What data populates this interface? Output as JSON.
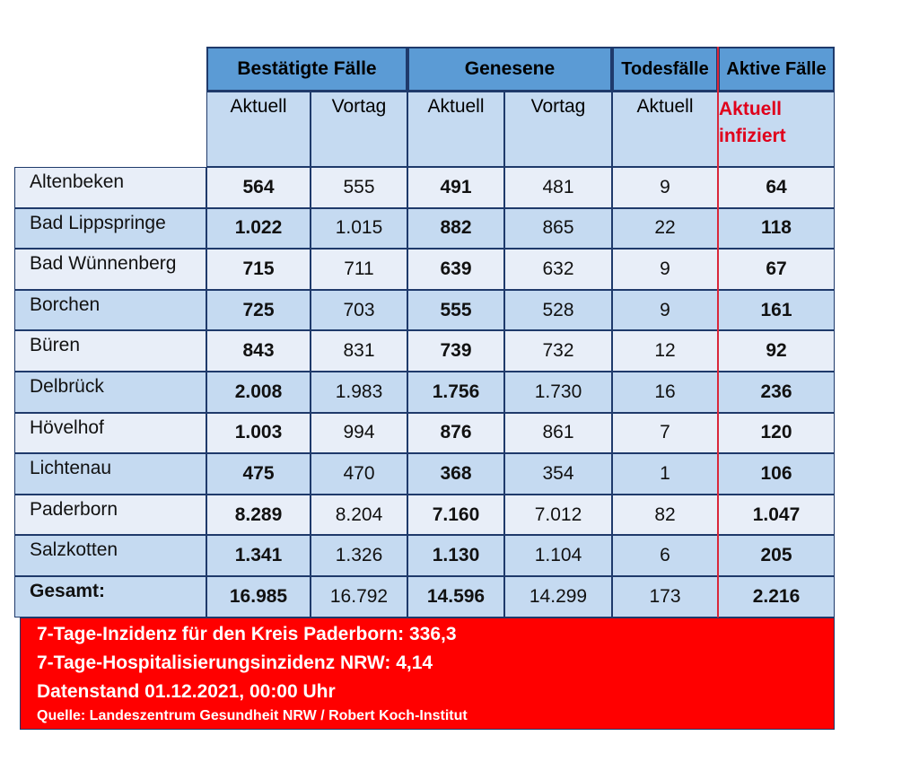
{
  "headers": {
    "group1": "Bestätigte Fälle",
    "group2": "Genesene",
    "group3": "Todesfälle",
    "group4": "Aktive Fälle",
    "sub1": "Aktuell",
    "sub2": "Vortag",
    "sub3": "Aktuell",
    "sub4": "Vortag",
    "sub5": "Aktuell",
    "sub6_line1": "Aktuell",
    "sub6_line2": "infiziert"
  },
  "rows": [
    {
      "name": "Altenbeken",
      "c1": "564",
      "c2": "555",
      "c3": "491",
      "c4": "481",
      "c5": "9",
      "c6": "64"
    },
    {
      "name": "Bad Lippspringe",
      "c1": "1.022",
      "c2": "1.015",
      "c3": "882",
      "c4": "865",
      "c5": "22",
      "c6": "118"
    },
    {
      "name": "Bad Wünnenberg",
      "c1": "715",
      "c2": "711",
      "c3": "639",
      "c4": "632",
      "c5": "9",
      "c6": "67"
    },
    {
      "name": "Borchen",
      "c1": "725",
      "c2": "703",
      "c3": "555",
      "c4": "528",
      "c5": "9",
      "c6": "161"
    },
    {
      "name": "Büren",
      "c1": "843",
      "c2": "831",
      "c3": "739",
      "c4": "732",
      "c5": "12",
      "c6": "92"
    },
    {
      "name": "Delbrück",
      "c1": "2.008",
      "c2": "1.983",
      "c3": "1.756",
      "c4": "1.730",
      "c5": "16",
      "c6": "236"
    },
    {
      "name": "Hövelhof",
      "c1": "1.003",
      "c2": "994",
      "c3": "876",
      "c4": "861",
      "c5": "7",
      "c6": "120"
    },
    {
      "name": "Lichtenau",
      "c1": "475",
      "c2": "470",
      "c3": "368",
      "c4": "354",
      "c5": "1",
      "c6": "106"
    },
    {
      "name": "Paderborn",
      "c1": "8.289",
      "c2": "8.204",
      "c3": "7.160",
      "c4": "7.012",
      "c5": "82",
      "c6": "1.047"
    },
    {
      "name": "Salzkotten",
      "c1": "1.341",
      "c2": "1.326",
      "c3": "1.130",
      "c4": "1.104",
      "c5": "6",
      "c6": "205"
    },
    {
      "name": "Gesamt:",
      "c1": "16.985",
      "c2": "16.792",
      "c3": "14.596",
      "c4": "14.299",
      "c5": "173",
      "c6": "2.216"
    }
  ],
  "note": {
    "line1": "7-Tage-Inzidenz für den Kreis Paderborn: 336,3",
    "line2": "7-Tage-Hospitalisierungsinzidenz NRW: 4,14",
    "line3": "Datenstand 01.12.2021, 00:00 Uhr",
    "line4": "Quelle: Landeszentrum Gesundheit NRW / Robert Koch-Institut"
  },
  "colors": {
    "header_dark": "#5b9bd5",
    "header_light": "#c5daf1",
    "row_light": "#e8eef8",
    "accent_red": "#ff0000",
    "red_text": "#e0001b"
  }
}
